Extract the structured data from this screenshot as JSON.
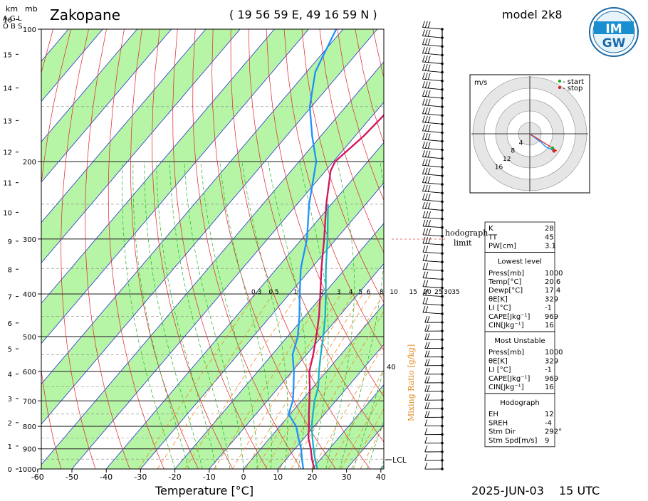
{
  "header": {
    "station": "Zakopane",
    "coords": "( 19 56 59  E, 49 16 59  N )",
    "model": "model 2k8",
    "date": "2025-JUN-03",
    "time": "15 UTC",
    "logo_top": "IM",
    "logo_bottom": "GW"
  },
  "left_axis": {
    "km_label": "km",
    "mb_label": "mb",
    "agl_label": "A G L",
    "obs_label": "O B S",
    "km_ticks": [
      "0",
      "1",
      "2",
      "3",
      "4",
      "5",
      "6",
      "7",
      "8",
      "9",
      "10",
      "11",
      "12",
      "13",
      "14",
      "15",
      "16"
    ]
  },
  "chart_data": {
    "type": "skew-t",
    "xlabel": "Temperature [°C]",
    "x_ticks": [
      -60,
      -50,
      -40,
      -30,
      -20,
      -10,
      0,
      10,
      20,
      30,
      40
    ],
    "pressure_ticks": [
      100,
      200,
      300,
      400,
      500,
      600,
      700,
      800,
      900,
      1000
    ],
    "height_km_ticks": [
      0,
      1,
      2,
      3,
      4,
      5,
      6,
      7,
      8,
      9,
      10,
      11,
      12,
      13,
      14,
      15,
      16
    ],
    "mixing_ratio_label": "Mixing Ratio [g/kg]",
    "mixing_ratio_values": [
      "0.3",
      "0.5",
      "1",
      "2",
      "3",
      "4",
      "5",
      "6",
      "8",
      "10",
      "15",
      "20",
      "25",
      "30",
      "35"
    ],
    "mixing_ratio_40": "40",
    "lcl_label": "LCL",
    "hodograph_limit_label": "hodograph limit",
    "series": [
      {
        "name": "temperature",
        "color": "#d4145a",
        "points": [
          [
            1000,
            20.6
          ],
          [
            950,
            17.5
          ],
          [
            900,
            14.6
          ],
          [
            850,
            11.2
          ],
          [
            800,
            8.5
          ],
          [
            750,
            5.4
          ],
          [
            700,
            2.3
          ],
          [
            650,
            -1.1
          ],
          [
            600,
            -5.0
          ],
          [
            550,
            -8.0
          ],
          [
            500,
            -11.6
          ],
          [
            450,
            -15.8
          ],
          [
            400,
            -21.0
          ],
          [
            350,
            -27.0
          ],
          [
            300,
            -33.5
          ],
          [
            250,
            -41.5
          ],
          [
            210,
            -48.5
          ],
          [
            200,
            -49.5
          ],
          [
            175,
            -47.5
          ],
          [
            150,
            -46.5
          ],
          [
            125,
            -48.5
          ],
          [
            100,
            -50.0
          ]
        ]
      },
      {
        "name": "dewpoint",
        "color": "#1e90ff",
        "points": [
          [
            1000,
            17.4
          ],
          [
            950,
            14.6
          ],
          [
            900,
            11.8
          ],
          [
            850,
            8.3
          ],
          [
            800,
            4.8
          ],
          [
            750,
            -0.5
          ],
          [
            700,
            -2.5
          ],
          [
            650,
            -5.8
          ],
          [
            600,
            -9.5
          ],
          [
            550,
            -14.0
          ],
          [
            500,
            -17.0
          ],
          [
            450,
            -21.5
          ],
          [
            400,
            -27.0
          ],
          [
            350,
            -33.0
          ],
          [
            300,
            -38.5
          ],
          [
            250,
            -46.5
          ],
          [
            200,
            -55.0
          ],
          [
            175,
            -62.5
          ],
          [
            150,
            -70.5
          ],
          [
            125,
            -77.5
          ],
          [
            100,
            -82.0
          ]
        ]
      },
      {
        "name": "parcel",
        "color": "#17b3c7",
        "points": [
          [
            1000,
            21.5
          ],
          [
            950,
            18.4
          ],
          [
            900,
            15.4
          ],
          [
            850,
            12.4
          ],
          [
            800,
            9.3
          ],
          [
            750,
            6.6
          ],
          [
            700,
            3.8
          ],
          [
            650,
            1.4
          ],
          [
            600,
            -2.2
          ],
          [
            550,
            -5.8
          ],
          [
            500,
            -9.6
          ],
          [
            450,
            -14.0
          ],
          [
            400,
            -19.4
          ],
          [
            350,
            -25.7
          ],
          [
            300,
            -32.5
          ],
          [
            250,
            -41.0
          ]
        ]
      }
    ],
    "wind_barbs_count": 52
  },
  "hodograph": {
    "units": "m/s",
    "legend_start": "- start",
    "legend_stop": "- stop",
    "ring_labels": [
      "4",
      "8",
      "12",
      "16"
    ],
    "start_color": "#22aa22",
    "stop_color": "#dd2222"
  },
  "indices": {
    "top": [
      {
        "label": "K",
        "value": "28"
      },
      {
        "label": "TT",
        "value": "45"
      },
      {
        "label": "PW[cm]",
        "value": "3.1"
      }
    ],
    "lowest_title": "Lowest level",
    "lowest": [
      {
        "label": "Press[mb]",
        "value": "1000"
      },
      {
        "label": "Temp[°C]",
        "value": "20.6"
      },
      {
        "label": "Dewp[°C]",
        "value": "17.4"
      },
      {
        "label": "θE[K]",
        "value": "329"
      },
      {
        "label": "LI [°C]",
        "value": "-1"
      },
      {
        "label": "CAPE[Jkg⁻¹]",
        "value": "969"
      },
      {
        "label": "CIN[Jkg⁻¹]",
        "value": "16"
      }
    ],
    "unstable_title": "Most Unstable",
    "unstable": [
      {
        "label": "Press[mb]",
        "value": "1000"
      },
      {
        "label": "θE[K]",
        "value": "329"
      },
      {
        "label": "LI [°C]",
        "value": "-1"
      },
      {
        "label": "CAPE[Jkg⁻¹]",
        "value": "969"
      },
      {
        "label": "CIN[Jkg⁻¹]",
        "value": "16"
      }
    ],
    "hodo_title": "Hodograph",
    "hodo": [
      {
        "label": "EH",
        "value": "12"
      },
      {
        "label": "SREH",
        "value": "-4"
      },
      {
        "label": "Stm Dir",
        "value": "292°"
      },
      {
        "label": "Stm Spd[m/s]",
        "value": "9"
      }
    ]
  },
  "colors": {
    "green_band": "#b6f5a6",
    "isotherm": "#2233cc",
    "dry_adiabat": "#e0202a",
    "moist_adiabat": "#22b322",
    "mixing_ratio": "#f08a20",
    "isobar": "#333333"
  }
}
